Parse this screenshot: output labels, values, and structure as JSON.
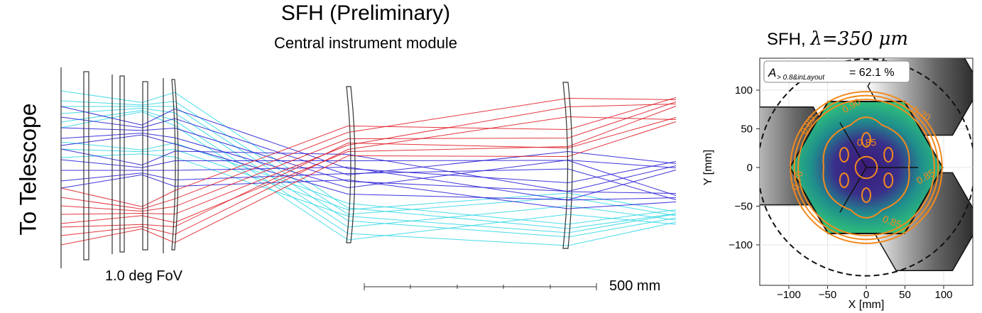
{
  "diagram": {
    "title": "SFH (Preliminary)",
    "subtitle": "Central instrument module",
    "side_label": "To Telescope",
    "fov_label": "1.0 deg FoV",
    "scale_label": "500 mm",
    "ray_colors": [
      "#35d8e6",
      "#2a1fd6",
      "#e0202a"
    ]
  },
  "plot": {
    "title_prefix": "SFH,",
    "title_lambda": "λ=350 μm",
    "efficiency_label": "A",
    "efficiency_subscript": "> 0.8&inLayout",
    "efficiency_value": "= 62.1 %",
    "xlabel": "X [mm]",
    "ylabel": "Y [mm]",
    "xticks": [
      -100,
      -50,
      0,
      50,
      100
    ],
    "yticks": [
      100,
      50,
      0,
      -50,
      -100
    ],
    "xtick_labels": [
      "−100",
      "−50",
      "0",
      "50",
      "100"
    ],
    "ytick_labels": [
      "100",
      "50",
      "0",
      "−50",
      "−100"
    ],
    "contour_labels": [
      "0.90",
      "0.70",
      "0.80",
      "0.85",
      "0.70",
      "0.85",
      "0.85"
    ],
    "contour_color": "#f28a1e"
  }
}
